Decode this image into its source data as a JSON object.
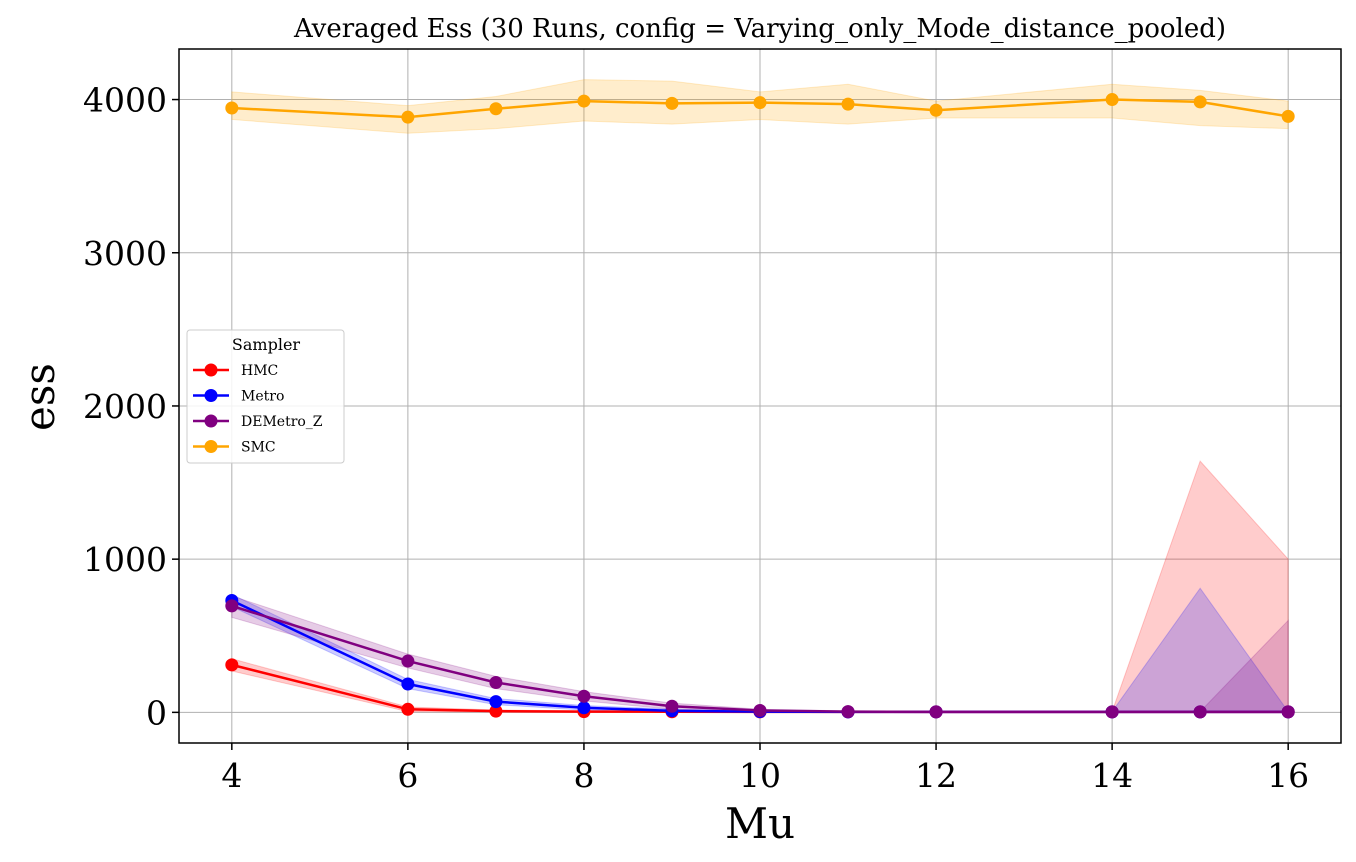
{
  "chart_data": {
    "type": "line",
    "title": "Averaged Ess (30 Runs, config = Varying_only_Mode_distance_pooled)",
    "xlabel": "Mu",
    "ylabel": "ess",
    "xlim": [
      3.4,
      16.6
    ],
    "ylim": [
      -200,
      4330
    ],
    "xticks": [
      4,
      6,
      8,
      10,
      12,
      14,
      16
    ],
    "yticks": [
      0,
      1000,
      2000,
      3000,
      4000
    ],
    "grid": true,
    "legend": {
      "title": "Sampler",
      "placement": "center-left"
    },
    "x": [
      4,
      6,
      7,
      8,
      9,
      10,
      11,
      12,
      14,
      15,
      16
    ],
    "series": [
      {
        "name": "HMC",
        "color": "#ff0000",
        "values": [
          310,
          20,
          8,
          5,
          4,
          3,
          3,
          3,
          3,
          3,
          3
        ],
        "band_upper": [
          350,
          35,
          15,
          10,
          8,
          6,
          5,
          5,
          5,
          1640,
          1000
        ],
        "band_lower": [
          270,
          5,
          2,
          1,
          1,
          1,
          1,
          1,
          1,
          0,
          0
        ]
      },
      {
        "name": "Metro",
        "color": "#0000ff",
        "values": [
          730,
          185,
          70,
          30,
          10,
          5,
          3,
          3,
          3,
          3,
          3
        ],
        "band_upper": [
          770,
          215,
          90,
          45,
          20,
          10,
          6,
          5,
          5,
          810,
          5
        ],
        "band_lower": [
          690,
          155,
          50,
          15,
          2,
          1,
          1,
          1,
          1,
          0,
          0
        ]
      },
      {
        "name": "DEMetro_Z",
        "color": "#800080",
        "values": [
          695,
          335,
          195,
          105,
          40,
          12,
          5,
          3,
          3,
          3,
          3
        ],
        "band_upper": [
          760,
          380,
          235,
          135,
          60,
          20,
          10,
          6,
          5,
          5,
          600
        ],
        "band_lower": [
          620,
          290,
          155,
          75,
          20,
          5,
          1,
          1,
          1,
          0,
          0
        ]
      },
      {
        "name": "SMC",
        "color": "#ffa500",
        "values": [
          3945,
          3885,
          3940,
          3990,
          3975,
          3980,
          3970,
          3930,
          4000,
          3985,
          3890
        ],
        "band_upper": [
          4050,
          3960,
          4020,
          4130,
          4120,
          4050,
          4100,
          3990,
          4100,
          4060,
          3990
        ],
        "band_lower": [
          3870,
          3780,
          3810,
          3860,
          3840,
          3870,
          3840,
          3880,
          3880,
          3830,
          3810
        ]
      }
    ]
  }
}
